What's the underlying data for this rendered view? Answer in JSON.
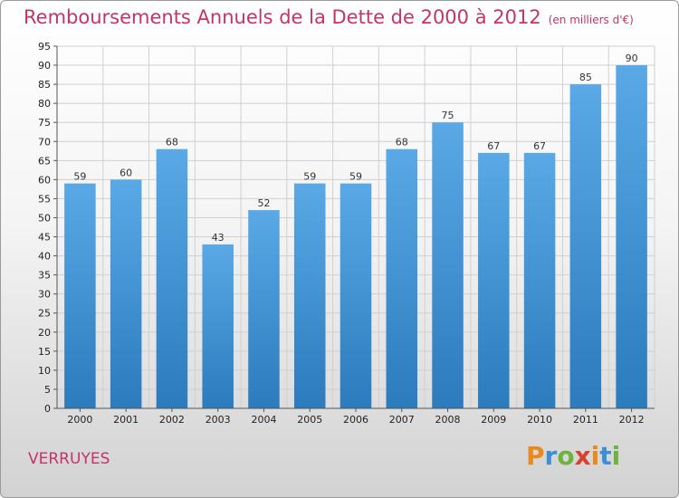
{
  "header": {
    "title": "Remboursements Annuels de la Dette de 2000 à 2012",
    "unit": "(en milliers d'€)"
  },
  "footer": {
    "commune": "VERRUYES",
    "brand_letters": [
      "P",
      "r",
      "o",
      "x",
      "i",
      "t",
      "i"
    ]
  },
  "colors": {
    "title": "#c4336a",
    "bar_top": "#5aa9e6",
    "bar_bottom": "#2b7bbd",
    "grid": "#d0d0d0"
  },
  "chart_data": {
    "type": "bar",
    "title": "Remboursements Annuels de la Dette de 2000 à 2012",
    "xlabel": "",
    "ylabel": "",
    "categories": [
      "2000",
      "2001",
      "2002",
      "2003",
      "2004",
      "2005",
      "2006",
      "2007",
      "2008",
      "2009",
      "2010",
      "2011",
      "2012"
    ],
    "values": [
      59,
      60,
      68,
      43,
      52,
      59,
      59,
      68,
      75,
      67,
      67,
      85,
      90
    ],
    "ylim": [
      0,
      95
    ],
    "yticks": [
      0,
      5,
      10,
      15,
      20,
      25,
      30,
      35,
      40,
      45,
      50,
      55,
      60,
      65,
      70,
      75,
      80,
      85,
      90,
      95
    ],
    "grid": true,
    "data_labels": true
  }
}
